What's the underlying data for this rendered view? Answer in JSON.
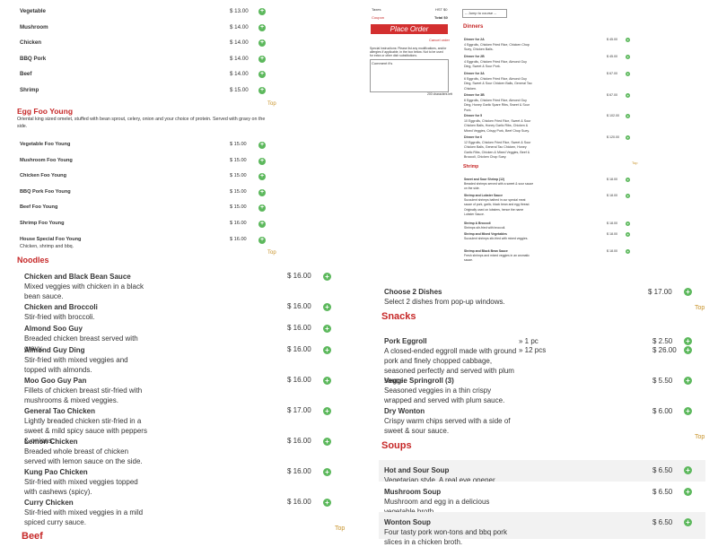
{
  "left_menu": {
    "items": [
      {
        "name": "Vegetable",
        "price": "$ 13.00"
      },
      {
        "name": "Mushroom",
        "price": "$ 14.00"
      },
      {
        "name": "Chicken",
        "price": "$ 14.00"
      },
      {
        "name": "BBQ Pork",
        "price": "$ 14.00"
      },
      {
        "name": "Beef",
        "price": "$ 14.00"
      },
      {
        "name": "Shrimp",
        "price": "$ 15.00"
      }
    ],
    "top": "Top",
    "egg_foo_young": {
      "title": "Egg Foo Young",
      "description": "Oriental king sized omelet, stuffed with bean sprout, celery, onion and your choice of protein. Served with gravy on the side.",
      "items": [
        {
          "name": "Vegetable Foo Young",
          "price": "$ 15.00"
        },
        {
          "name": "Mushroom Foo Young",
          "price": "$ 15.00"
        },
        {
          "name": "Chicken Foo Young",
          "price": "$ 15.00"
        },
        {
          "name": "BBQ Pork Foo Young",
          "price": "$ 15.00"
        },
        {
          "name": "Beef Foo Young",
          "price": "$ 15.00"
        },
        {
          "name": "Shrimp Foo Young",
          "price": "$ 16.00"
        },
        {
          "name": "House Special Foo Young",
          "description": "Chicken, shrimp and bbq.",
          "price": "$ 16.00"
        }
      ],
      "top": "Top"
    },
    "next_title": "Noodles"
  },
  "noodles": {
    "items": [
      {
        "name": "Chicken and Black Bean Sauce",
        "description": "Mixed veggies with chicken in a black bean sauce.",
        "price": "$ 16.00"
      },
      {
        "name": "Chicken and Broccoli",
        "description": "Stir-fried with broccoli.",
        "price": "$ 16.00"
      },
      {
        "name": "Almond Soo Guy",
        "description": "Breaded chicken breast served with gravy.",
        "price": "$ 16.00"
      },
      {
        "name": "Almond Guy Ding",
        "description": "Stir-fried with mixed veggies and topped with almonds.",
        "price": "$ 16.00"
      },
      {
        "name": "Moo Goo Guy Pan",
        "description": "Fillets of chicken breast stir-fried with mushrooms & mixed veggies.",
        "price": "$ 16.00"
      },
      {
        "name": "General Tao Chicken",
        "description": "Lightly breaded chicken stir-fried in a sweet & mild spicy sauce with peppers & onions.",
        "price": "$ 17.00"
      },
      {
        "name": "Lemon Chicken",
        "description": "Breaded whole breast of chicken served with lemon sauce on the side.",
        "price": "$ 16.00"
      },
      {
        "name": "Kung Pao Chicken",
        "description": "Stir-fried with mixed veggies topped with cashews (spicy).",
        "price": "$ 16.00"
      },
      {
        "name": "Curry Chicken",
        "description": "Stir-fried with mixed veggies in a mild spiced curry sauce.",
        "price": "$ 16.00"
      }
    ],
    "top": "Top",
    "next_title": "Beef"
  },
  "order_panel": {
    "taxes_label": "Taxes",
    "hst": "HST $0",
    "coupon": "Coupon",
    "total": "Total $0",
    "button": "Place Order",
    "cancel": "Cancel order",
    "instructions": "Special Instructions: Please list any modifications, and/or allergies if applicable, in the box below. Not to be used for extra or other dish substitutions.",
    "textarea": "Comment it's",
    "counter": "200 characters left"
  },
  "dinners": {
    "jump": "-- Jump to course --",
    "title": "Dinners",
    "items": [
      {
        "name": "Dinner for 2A",
        "description": "4 Eggrolls, Chicken Fried Rice, Chicken Chop Suey, Chicken Balls.",
        "price": "$ 45.00"
      },
      {
        "name": "Dinner for 2B",
        "description": "4 Eggrolls, Chicken Fried Rice, Almond Guy Ding, Sweet & Sour Pork.",
        "price": "$ 45.00"
      },
      {
        "name": "Dinner for 3A",
        "description": "6 Eggrolls, Chicken Fried Rice, Almond Guy Ding, Sweet & Sour Chicken Balls, General Tao Chicken.",
        "price": "$ 67.00"
      },
      {
        "name": "Dinner for 3B",
        "description": "6 Eggrolls, Chicken Fried Rice, Almond Guy Ding, Honey Garlic Spare Ribs, Sweet & Sour Pork.",
        "price": "$ 67.00"
      },
      {
        "name": "Dinner for 5",
        "description": "10 Eggrolls, Chicken Fried Rice, Sweet & Sour Chicken Balls, Honey Garlic Ribs, Chicken & Mixed Veggies, Crispy Pork, Beef Chop Suey.",
        "price": "$ 102.00"
      },
      {
        "name": "Dinner for 6",
        "description": "12 Eggrolls, Chicken Fried Rice, Sweet & Sour Chicken Balls, General Tao Chicken, Honey Garlic Ribs, Chicken & Mixed Veggies, Beef & Broccoli, Chicken Chop Suey.",
        "price": "$ 120.00"
      }
    ],
    "top": "Top",
    "next_title": "Shrimp",
    "shrimp_items": [
      {
        "name": "Sweet and Sour Shrimp (12)",
        "description": "Breaded shrimps served with a sweet & sour sauce on the side.",
        "price": "$ 18.00"
      },
      {
        "name": "Shrimp and Lobster Sauce",
        "description": "Succulent shrimps bathed in our special meat sauce of pork, garlic, black bean and egg thread. Originally used on lobsters, hence the name Lobster Sauce.",
        "price": "$ 18.00"
      },
      {
        "name": "Shrimp & Broccoli",
        "description": "Shrimps stir-fried with broccoli.",
        "price": "$ 18.00"
      },
      {
        "name": "Shrimp and Mixed Vegetables",
        "description": "Succulent shrimps stir-fried with mixed veggies.",
        "price": "$ 18.00"
      },
      {
        "name": "Shrimp and Black Bean Sauce",
        "description": "Fresh shrimps and mixed veggies in an aromatic sauce.",
        "price": "$ 18.00"
      }
    ]
  },
  "right_menu": {
    "combo": {
      "name": "Choose 2 Dishes",
      "description": "Select 2 dishes from pop-up windows.",
      "price": "$ 17.00"
    },
    "top": "Top",
    "snacks_title": "Snacks",
    "snacks": [
      {
        "name": "Pork Eggroll",
        "description": "A closed-ended eggroll made with ground pork and finely chopped cabbage, seasoned perfectly and served with plum sauce.",
        "options": [
          {
            "size": "» 1 pc",
            "price": "$ 2.50"
          },
          {
            "size": "» 12 pcs",
            "price": "$ 26.00"
          }
        ]
      },
      {
        "name": "Veggie Springroll (3)",
        "description": "Seasoned veggies in a thin crispy wrapped and served with plum sauce.",
        "options": [
          {
            "size": "",
            "price": "$ 5.50"
          }
        ]
      },
      {
        "name": "Dry Wonton",
        "description": "Crispy warm chips served with a side of sweet & sour sauce.",
        "options": [
          {
            "size": "",
            "price": "$ 6.00"
          }
        ]
      }
    ],
    "top2": "Top",
    "soups_title": "Soups",
    "soups": [
      {
        "name": "Hot and Sour Soup",
        "description": "Vegetarian style. A real eye opener.",
        "price": "$ 6.50"
      },
      {
        "name": "Mushroom Soup",
        "description": "Mushroom and egg in a delicious vegetable broth.",
        "price": "$ 6.50"
      },
      {
        "name": "Wonton Soup",
        "description": "Four tasty pork won-tons and bbq pork slices in a chicken broth.",
        "price": "$ 6.50"
      }
    ]
  }
}
